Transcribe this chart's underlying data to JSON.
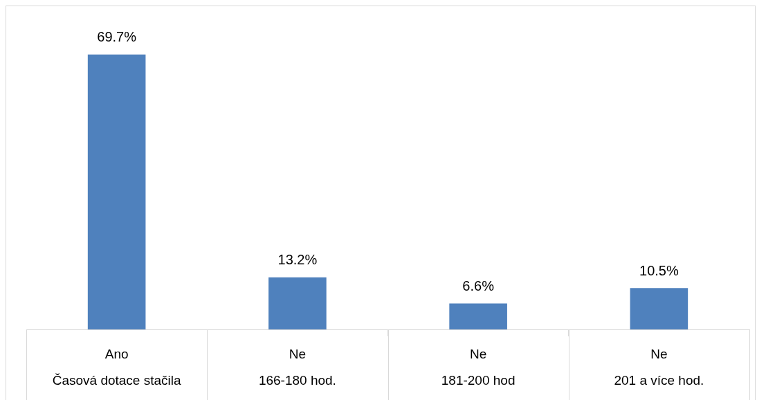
{
  "chart_data": {
    "type": "bar",
    "categories": [
      "Ano\nČasová dotace stačila",
      "Ne\n166-180 hod.",
      "Ne\n181-200 hod",
      "Ne\n201 a více hod."
    ],
    "values": [
      69.7,
      13.2,
      6.6,
      10.5
    ],
    "color": "#4f81bd",
    "value_labels": [
      "69.7%",
      "13.2%",
      "6.6%",
      "10.5%"
    ],
    "tick_labels": "x",
    "grid": false,
    "legend": false
  }
}
